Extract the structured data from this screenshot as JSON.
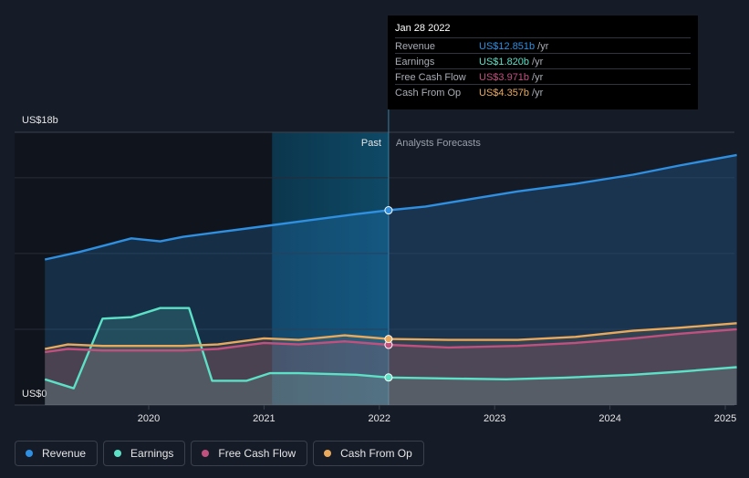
{
  "chart_data": {
    "type": "line",
    "y_axis": {
      "top_label": "US$18b",
      "bottom_label": "US$0",
      "ylim": [
        0,
        18
      ]
    },
    "x_ticks": [
      "2020",
      "2021",
      "2022",
      "2023",
      "2024",
      "2025"
    ],
    "x_tick_values": [
      2020.0,
      2021.0,
      2022.0,
      2023.0,
      2024.0,
      2025.0
    ],
    "past_label": "Past",
    "forecast_label": "Analysts Forecasts",
    "divider_x": 2022.08,
    "highlight_start": 2021.07,
    "grid": true,
    "series": [
      {
        "name": "Revenue",
        "color": "#2f8fe0",
        "points": [
          [
            2019.1,
            9.6
          ],
          [
            2019.4,
            10.1
          ],
          [
            2019.7,
            10.7
          ],
          [
            2019.85,
            11.0
          ],
          [
            2020.1,
            10.8
          ],
          [
            2020.3,
            11.1
          ],
          [
            2020.6,
            11.4
          ],
          [
            2021.0,
            11.8
          ],
          [
            2021.4,
            12.2
          ],
          [
            2021.8,
            12.6
          ],
          [
            2022.08,
            12.851
          ],
          [
            2022.4,
            13.1
          ],
          [
            2022.8,
            13.6
          ],
          [
            2023.2,
            14.1
          ],
          [
            2023.7,
            14.6
          ],
          [
            2024.2,
            15.2
          ],
          [
            2024.6,
            15.8
          ],
          [
            2025.1,
            16.5
          ]
        ]
      },
      {
        "name": "Earnings",
        "color": "#5ce0c6",
        "points": [
          [
            2019.1,
            1.7
          ],
          [
            2019.35,
            1.1
          ],
          [
            2019.6,
            5.7
          ],
          [
            2019.85,
            5.8
          ],
          [
            2020.1,
            6.4
          ],
          [
            2020.35,
            6.4
          ],
          [
            2020.55,
            1.6
          ],
          [
            2020.85,
            1.6
          ],
          [
            2021.05,
            2.1
          ],
          [
            2021.3,
            2.1
          ],
          [
            2021.8,
            2.0
          ],
          [
            2022.08,
            1.82
          ],
          [
            2022.6,
            1.75
          ],
          [
            2023.1,
            1.7
          ],
          [
            2023.6,
            1.8
          ],
          [
            2024.2,
            2.0
          ],
          [
            2024.6,
            2.2
          ],
          [
            2025.1,
            2.5
          ]
        ]
      },
      {
        "name": "Free Cash Flow",
        "color": "#c0517f",
        "points": [
          [
            2019.1,
            3.5
          ],
          [
            2019.3,
            3.7
          ],
          [
            2019.6,
            3.6
          ],
          [
            2020.0,
            3.6
          ],
          [
            2020.3,
            3.6
          ],
          [
            2020.6,
            3.7
          ],
          [
            2021.0,
            4.1
          ],
          [
            2021.3,
            4.0
          ],
          [
            2021.7,
            4.2
          ],
          [
            2022.08,
            3.971
          ],
          [
            2022.6,
            3.8
          ],
          [
            2023.2,
            3.9
          ],
          [
            2023.7,
            4.1
          ],
          [
            2024.2,
            4.4
          ],
          [
            2024.6,
            4.7
          ],
          [
            2025.1,
            5.0
          ]
        ]
      },
      {
        "name": "Cash From Op",
        "color": "#e9a95c",
        "points": [
          [
            2019.1,
            3.7
          ],
          [
            2019.3,
            4.0
          ],
          [
            2019.6,
            3.9
          ],
          [
            2020.0,
            3.9
          ],
          [
            2020.3,
            3.9
          ],
          [
            2020.6,
            4.0
          ],
          [
            2021.0,
            4.4
          ],
          [
            2021.3,
            4.3
          ],
          [
            2021.7,
            4.6
          ],
          [
            2022.08,
            4.357
          ],
          [
            2022.6,
            4.3
          ],
          [
            2023.2,
            4.3
          ],
          [
            2023.7,
            4.5
          ],
          [
            2024.2,
            4.9
          ],
          [
            2024.6,
            5.1
          ],
          [
            2025.1,
            5.4
          ]
        ]
      }
    ]
  },
  "tooltip": {
    "date": "Jan 28 2022",
    "unit": "/yr",
    "rows": [
      {
        "label": "Revenue",
        "value": "US$12.851b",
        "color": "#2f8fe0"
      },
      {
        "label": "Earnings",
        "value": "US$1.820b",
        "color": "#5ce0c6"
      },
      {
        "label": "Free Cash Flow",
        "value": "US$3.971b",
        "color": "#c0517f"
      },
      {
        "label": "Cash From Op",
        "value": "US$4.357b",
        "color": "#e9a95c"
      }
    ]
  },
  "legend": [
    {
      "label": "Revenue",
      "color": "#2f8fe0"
    },
    {
      "label": "Earnings",
      "color": "#5ce0c6"
    },
    {
      "label": "Free Cash Flow",
      "color": "#c0517f"
    },
    {
      "label": "Cash From Op",
      "color": "#e9a95c"
    }
  ]
}
